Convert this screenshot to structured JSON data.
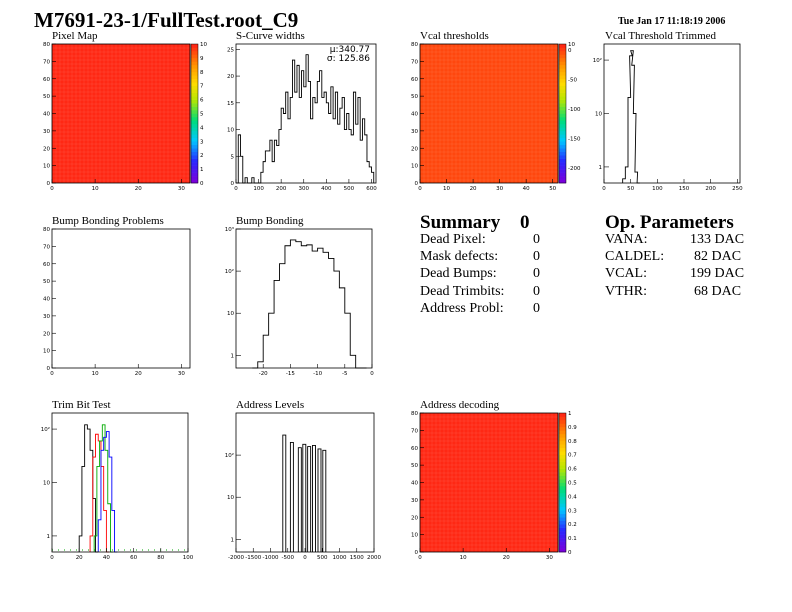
{
  "title": "M7691-23-1/FullTest.root_C9",
  "timestamp": "Tue Jan 17 11:18:19 2006",
  "colors": {
    "frame": "#000000",
    "map_red": "#ff3322",
    "map_orange": "#ffaa22",
    "line": "#000000"
  },
  "chart_data": [
    {
      "id": "pixel-map",
      "type": "heatmap",
      "title": "Pixel Map",
      "xlim": [
        0,
        32
      ],
      "ylim": [
        0,
        80
      ],
      "xticks": [
        "0",
        "10",
        "20",
        "30"
      ],
      "yticks": [
        "0",
        "10",
        "20",
        "30",
        "40",
        "50",
        "60",
        "70",
        "80"
      ],
      "fill_value": 10,
      "zlim": [
        0,
        10
      ],
      "zticks": [
        "0",
        "1",
        "2",
        "3",
        "4",
        "5",
        "6",
        "7",
        "8",
        "9",
        "10"
      ]
    },
    {
      "id": "s-curve",
      "type": "line",
      "title": "S-Curve widths",
      "xlim": [
        0,
        620
      ],
      "ylim": [
        0,
        26
      ],
      "xticks": [
        "0",
        "100",
        "200",
        "300",
        "400",
        "500",
        "600"
      ],
      "yticks": [
        "0",
        "5",
        "10",
        "15",
        "20",
        "25"
      ],
      "stats": [
        "μ:340.77",
        "σ: 125.86"
      ],
      "x": [
        0,
        10,
        20,
        30,
        40,
        50,
        60,
        70,
        80,
        90,
        100,
        110,
        120,
        130,
        140,
        150,
        160,
        170,
        180,
        190,
        200,
        210,
        220,
        230,
        240,
        250,
        260,
        270,
        280,
        290,
        300,
        310,
        320,
        330,
        340,
        350,
        360,
        370,
        380,
        390,
        400,
        410,
        420,
        430,
        440,
        450,
        460,
        470,
        480,
        490,
        500,
        510,
        520,
        530,
        540,
        550,
        560,
        570,
        580,
        590,
        600
      ],
      "values": [
        0,
        9,
        5,
        0,
        1,
        0,
        0,
        1,
        0,
        0,
        0,
        2,
        4,
        6,
        6,
        8,
        4,
        8,
        7,
        10,
        14,
        13,
        17,
        12,
        16,
        23,
        17,
        22,
        16,
        21,
        18,
        24,
        19,
        12,
        16,
        15,
        19,
        21,
        16,
        17,
        15,
        13,
        18,
        12,
        17,
        11,
        14,
        16,
        10,
        13,
        10,
        9,
        17,
        11,
        16,
        8,
        12,
        9,
        4,
        3,
        2
      ]
    },
    {
      "id": "vcal-thresholds",
      "type": "heatmap",
      "title": "Vcal thresholds",
      "xlim": [
        0,
        52
      ],
      "ylim": [
        0,
        80
      ],
      "xticks": [
        "0",
        "10",
        "20",
        "30",
        "40",
        "50"
      ],
      "yticks": [
        "0",
        "10",
        "20",
        "30",
        "40",
        "50",
        "60",
        "70",
        "80"
      ],
      "fill_value": 0,
      "zlim": [
        -225,
        10
      ],
      "zticks": [
        "10",
        "0",
        "-50",
        "-100",
        "-150",
        "-200"
      ]
    },
    {
      "id": "vcal-trimmed",
      "type": "line",
      "title": "Vcal Threshold Trimmed",
      "xlim": [
        0,
        255
      ],
      "ylim_log": [
        0.5,
        200
      ],
      "xticks": [
        "0",
        "50",
        "100",
        "150",
        "200",
        "250"
      ],
      "yticks": [
        "1",
        "10",
        "10²"
      ],
      "x": [
        35,
        40,
        45,
        48,
        50,
        52,
        55,
        58,
        62
      ],
      "values": [
        0.6,
        1,
        20,
        120,
        150,
        80,
        10,
        0.8,
        0.5
      ]
    },
    {
      "id": "bump-problems",
      "type": "heatmap",
      "title": "Bump Bonding Problems",
      "xlim": [
        0,
        32
      ],
      "ylim": [
        0,
        80
      ],
      "xticks": [
        "0",
        "10",
        "20",
        "30"
      ],
      "yticks": [
        "0",
        "10",
        "20",
        "30",
        "40",
        "50",
        "60",
        "70",
        "80"
      ]
    },
    {
      "id": "bump-bonding",
      "type": "line",
      "title": "Bump Bonding",
      "xlim": [
        -25,
        0
      ],
      "ylim_log": [
        0.5,
        1000
      ],
      "xticks": [
        "-20",
        "-15",
        "-10",
        "-5",
        "0"
      ],
      "yticks": [
        "1",
        "10",
        "10²",
        "10³"
      ],
      "x": [
        -22,
        -21,
        -20,
        -19,
        -18,
        -17,
        -16,
        -15,
        -14,
        -13,
        -12,
        -11,
        -10,
        -9,
        -8,
        -7,
        -6,
        -5,
        -4,
        -3,
        -2
      ],
      "values": [
        0.5,
        0.7,
        3,
        10,
        60,
        150,
        400,
        550,
        500,
        400,
        420,
        300,
        350,
        280,
        200,
        100,
        40,
        10,
        1,
        0.5,
        0.5
      ]
    },
    {
      "id": "trim-bit",
      "type": "line",
      "title": "Trim Bit Test",
      "xlim": [
        0,
        100
      ],
      "ylim_log": [
        0.5,
        200
      ],
      "xticks": [
        "0",
        "20",
        "40",
        "60",
        "80",
        "100"
      ],
      "yticks": [
        "1",
        "10",
        "10²"
      ],
      "series": [
        {
          "color": "#000000",
          "x": [
            20,
            22,
            24,
            26,
            28,
            30,
            32
          ],
          "values": [
            1,
            20,
            120,
            100,
            40,
            5,
            0.5
          ]
        },
        {
          "color": "#ff0000",
          "x": [
            28,
            30,
            32,
            34,
            36,
            38,
            40
          ],
          "values": [
            1,
            30,
            80,
            60,
            20,
            3,
            0.5
          ]
        },
        {
          "color": "#00aa00",
          "x": [
            31,
            33,
            35,
            37,
            39,
            41,
            43
          ],
          "values": [
            1,
            20,
            60,
            120,
            40,
            4,
            0.5
          ]
        },
        {
          "color": "#0000ff",
          "x": [
            34,
            36,
            38,
            40,
            42,
            44,
            46
          ],
          "values": [
            2,
            40,
            70,
            90,
            30,
            3,
            0.5
          ]
        }
      ]
    },
    {
      "id": "address-levels",
      "type": "line",
      "title": "Address Levels",
      "xlim": [
        -2000,
        2000
      ],
      "ylim_log": [
        0.5,
        1000
      ],
      "xticks": [
        "-2000",
        "-1500",
        "-1000",
        "-500",
        "0",
        "500",
        "1000",
        "1500",
        "2000"
      ],
      "yticks": [
        "1",
        "10",
        "10²"
      ],
      "peaks_x": [
        -600,
        -380,
        -150,
        -20,
        120,
        260,
        420,
        560
      ],
      "peaks_y": [
        300,
        200,
        150,
        180,
        160,
        170,
        140,
        130
      ]
    },
    {
      "id": "address-decoding",
      "type": "heatmap",
      "title": "Address decoding",
      "xlim": [
        0,
        32
      ],
      "ylim": [
        0,
        80
      ],
      "xticks": [
        "0",
        "10",
        "20",
        "30"
      ],
      "yticks": [
        "0",
        "10",
        "20",
        "30",
        "40",
        "50",
        "60",
        "70",
        "80"
      ],
      "fill_value": 1,
      "zlim": [
        0,
        1
      ],
      "zticks": [
        "0",
        "0.1",
        "0.2",
        "0.3",
        "0.4",
        "0.5",
        "0.6",
        "0.7",
        "0.8",
        "0.9",
        "1"
      ]
    }
  ],
  "summary": {
    "heading": "Summary",
    "total": "0",
    "rows": [
      {
        "label": "Dead Pixel:",
        "value": "0"
      },
      {
        "label": "Mask defects:",
        "value": "0"
      },
      {
        "label": "Dead Bumps:",
        "value": "0"
      },
      {
        "label": "Dead Trimbits:",
        "value": "0"
      },
      {
        "label": "Address Probl:",
        "value": "0"
      }
    ]
  },
  "op_parameters": {
    "heading": "Op. Parameters",
    "rows": [
      {
        "label": "VANA:",
        "value": "133 DAC"
      },
      {
        "label": "CALDEL:",
        "value": "82 DAC"
      },
      {
        "label": "VCAL:",
        "value": "199 DAC"
      },
      {
        "label": "VTHR:",
        "value": "68 DAC"
      }
    ]
  }
}
